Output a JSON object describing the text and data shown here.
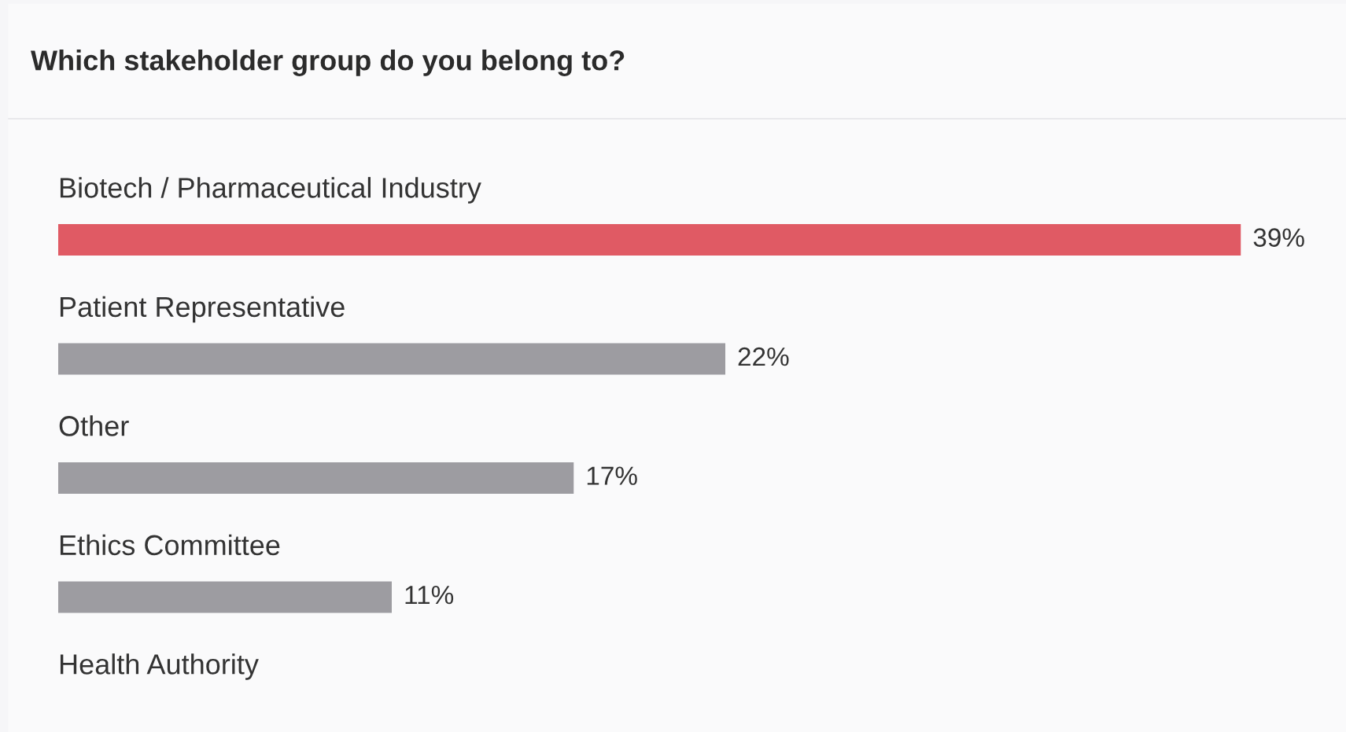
{
  "chart_data": {
    "type": "bar",
    "orientation": "horizontal",
    "title": "Which stakeholder group do you belong to?",
    "categories": [
      "Biotech / Pharmaceutical Industry",
      "Patient Representative",
      "Other",
      "Ethics Committee",
      "Health Authority"
    ],
    "values": [
      39,
      22,
      17,
      11,
      null
    ],
    "colors": [
      "#e05a64",
      "#9d9ca1",
      "#9d9ca1",
      "#9d9ca1",
      "#9d9ca1"
    ],
    "value_labels": [
      "39%",
      "22%",
      "17%",
      "11%",
      null
    ]
  }
}
